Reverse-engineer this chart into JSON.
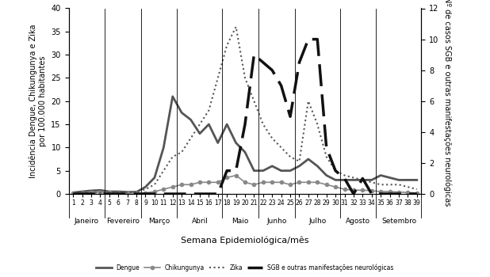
{
  "weeks": [
    1,
    2,
    3,
    4,
    5,
    6,
    7,
    8,
    9,
    10,
    11,
    12,
    13,
    14,
    15,
    16,
    17,
    18,
    19,
    20,
    21,
    22,
    23,
    24,
    25,
    26,
    27,
    28,
    29,
    30,
    31,
    32,
    33,
    34,
    35,
    36,
    37,
    38,
    39
  ],
  "dengue": [
    0.3,
    0.5,
    0.7,
    0.8,
    0.5,
    0.5,
    0.4,
    0.4,
    1.5,
    3.5,
    10,
    21,
    17.5,
    16,
    13,
    15,
    11,
    15,
    11,
    9,
    5,
    5,
    6,
    5,
    5,
    6,
    7.5,
    6,
    4,
    3,
    3,
    3,
    3,
    3,
    4,
    3.5,
    3,
    3,
    3
  ],
  "chikungunya": [
    0.2,
    0.2,
    0.3,
    0.3,
    0.3,
    0.2,
    0.2,
    0.2,
    0.2,
    0.5,
    1.0,
    1.5,
    2.0,
    2.0,
    2.5,
    2.5,
    2.5,
    3.5,
    4.0,
    2.5,
    2.0,
    2.5,
    2.5,
    2.5,
    2.0,
    2.5,
    2.5,
    2.5,
    2.0,
    1.5,
    1.0,
    0.8,
    0.8,
    0.7,
    0.5,
    0.5,
    0.4,
    0.3,
    0.2
  ],
  "zika": [
    0.1,
    0.2,
    0.2,
    0.3,
    0.3,
    0.3,
    0.3,
    0.5,
    1.0,
    2.0,
    5.0,
    8.0,
    9.0,
    12,
    15,
    18,
    25,
    32,
    36,
    25,
    20,
    15,
    12,
    10,
    8,
    7,
    20,
    15,
    8,
    5,
    4,
    3.5,
    3,
    2.5,
    2,
    2,
    2,
    1.5,
    1
  ],
  "sgb": [
    0,
    0,
    0,
    0,
    0,
    0,
    0,
    0,
    0,
    0,
    0,
    0,
    0,
    0,
    0,
    0,
    0,
    1.5,
    1.5,
    4.5,
    9,
    8.5,
    8,
    7,
    5,
    8.5,
    10,
    10,
    3,
    1.5,
    1,
    0,
    1,
    0,
    0,
    0,
    0,
    0,
    0
  ],
  "month_labels": [
    "Janeiro",
    "Fevereiro",
    "Março",
    "Abril",
    "Maio",
    "Junho",
    "Julho",
    "Agosto",
    "Setembro"
  ],
  "month_centers": [
    2.5,
    6.5,
    10.5,
    15.0,
    19.5,
    23.5,
    28.0,
    32.5,
    37.0
  ],
  "month_boundaries": [
    0.5,
    4.5,
    8.5,
    12.5,
    17.5,
    21.5,
    25.5,
    30.5,
    34.5,
    39.5
  ],
  "xlabel": "Semana Epidemiológica/mês",
  "ylabel_left": "Incidência Dengue, Chikungunya e Zika\npor 100.000 habitantes",
  "ylabel_right": "Nº de casos SGB e outras manifestações neurológicas",
  "ylim_left": [
    0,
    40
  ],
  "ylim_right": [
    0,
    12
  ],
  "yticks_left": [
    0,
    5,
    10,
    15,
    20,
    25,
    30,
    35,
    40
  ],
  "yticks_right": [
    0,
    2,
    4,
    6,
    8,
    10,
    12
  ],
  "legend_labels": [
    "Dengue",
    "Chikungunya",
    "Zika",
    "SGB e outras manifestações neurológicas"
  ],
  "dengue_color": "#555555",
  "chikungunya_color": "#888888",
  "zika_color": "#555555",
  "sgb_color": "#111111",
  "background_color": "#ffffff"
}
